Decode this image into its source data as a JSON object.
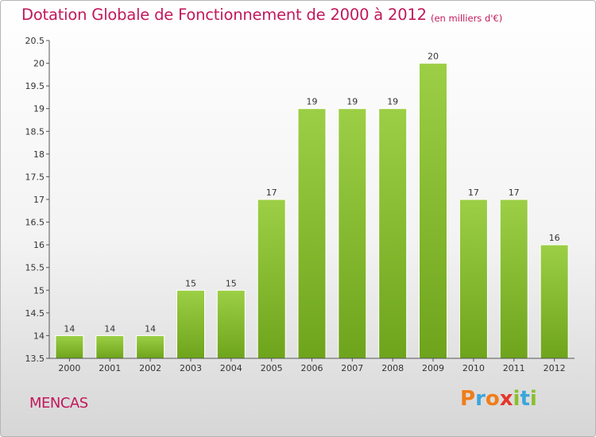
{
  "header": {
    "title": "Dotation Globale de Fonctionnement de 2000 à 2012",
    "unit_note": "(en milliers d'€)"
  },
  "footer": {
    "commune": "MENCAS",
    "brand_letters": [
      "P",
      "r",
      "o",
      "x",
      "i",
      "t",
      "i"
    ],
    "brand_colors": [
      "#ef7d1a",
      "#3aa6dc",
      "#ef7d1a",
      "#e5352b",
      "#8bbf2c",
      "#3aa6dc",
      "#8bbf2c"
    ]
  },
  "chart_data": {
    "type": "bar",
    "title": "Dotation Globale de Fonctionnement de 2000 à 2012",
    "subtitle": "(en milliers d'€)",
    "categories": [
      "2000",
      "2001",
      "2002",
      "2003",
      "2004",
      "2005",
      "2006",
      "2007",
      "2008",
      "2009",
      "2010",
      "2011",
      "2012"
    ],
    "values": [
      14,
      14,
      14,
      15,
      15,
      17,
      19,
      19,
      19,
      20,
      17,
      17,
      16
    ],
    "data_labels": [
      "14",
      "14",
      "14",
      "15",
      "15",
      "17",
      "19",
      "19",
      "19",
      "20",
      "17",
      "17",
      "16"
    ],
    "ylim": [
      13.5,
      20.5
    ],
    "yticks": [
      13.5,
      14,
      14.5,
      15,
      15.5,
      16,
      16.5,
      17,
      17.5,
      18,
      18.5,
      19,
      19.5,
      20,
      20.5
    ],
    "ytick_labels": [
      "13.5",
      "14",
      "14.5",
      "15",
      "15.5",
      "16",
      "16.5",
      "17",
      "17.5",
      "18",
      "18.5",
      "19",
      "19.5",
      "20",
      "20.5"
    ],
    "grid": false,
    "colors": {
      "bar_light": "#9ccf45",
      "bar_dark": "#6ea41c",
      "axis": "#555555"
    }
  }
}
